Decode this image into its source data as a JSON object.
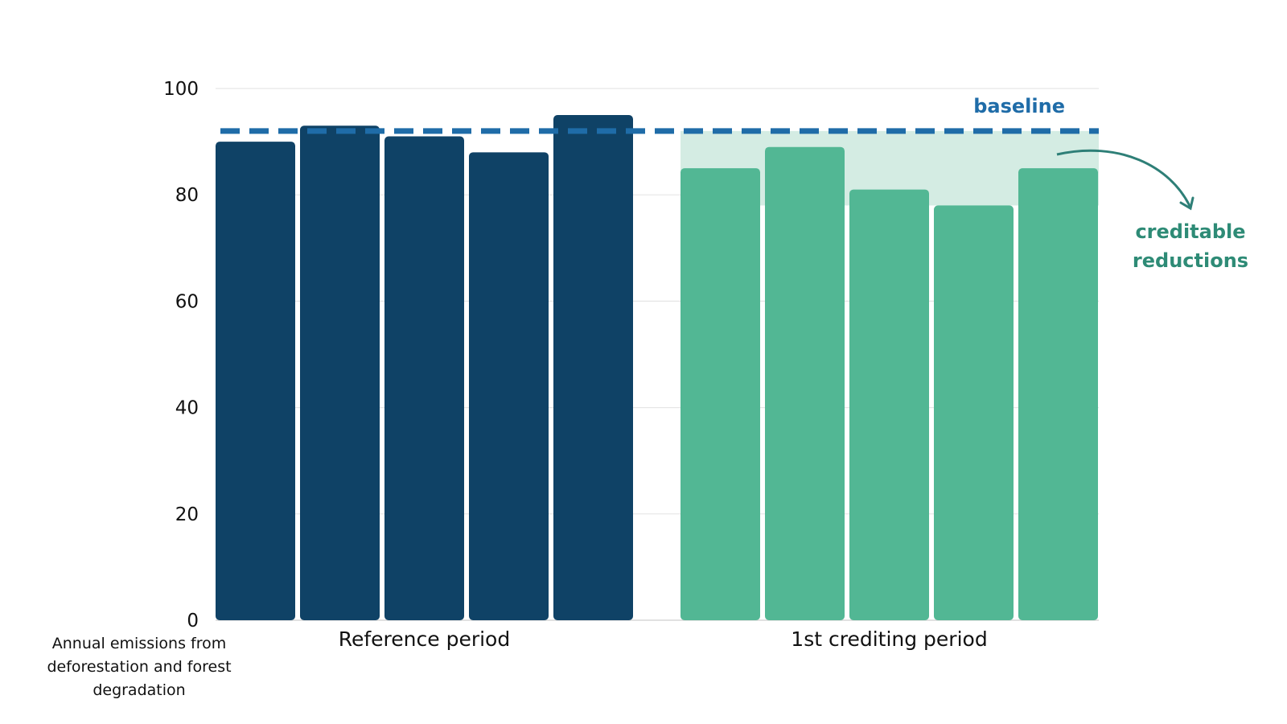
{
  "chart_data": {
    "type": "bar",
    "title": "",
    "ylabel": "Annual emissions from deforestation and forest degradation",
    "xlabel": "",
    "ylim": [
      0,
      100
    ],
    "yticks": [
      0,
      20,
      40,
      60,
      80,
      100
    ],
    "grid": true,
    "groups": [
      {
        "label": "Reference period",
        "values": [
          90,
          93,
          91,
          88,
          95
        ],
        "color": "#0F4266"
      },
      {
        "label": "1st crediting period",
        "values": [
          85,
          89,
          81,
          78,
          85
        ],
        "color": "#52B794"
      }
    ],
    "baseline": {
      "label": "baseline",
      "value": 92,
      "color": "#1F6CA8"
    },
    "creditable_band": {
      "label": "creditable reductions",
      "from": 78,
      "to": 92,
      "fill": "#D4ECE3",
      "label_color": "#2E8B76"
    }
  }
}
